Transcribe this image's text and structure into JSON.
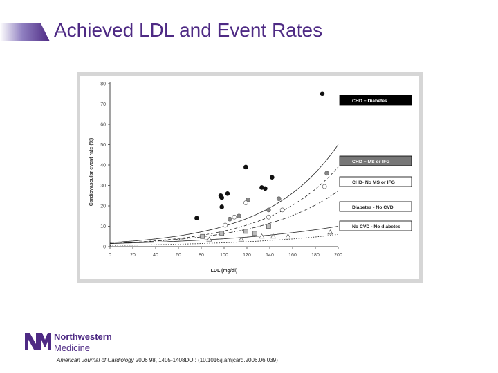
{
  "slide": {
    "title": "Achieved LDL and Event Rates",
    "accent_color": "#4e2a84",
    "citation_journal": "American Journal of Cardiology",
    "citation_rest": " 2006 98, 1405-1408DOI: (10.1016/j.amjcard.2006.06.039)",
    "logo": {
      "line1": "Northwestern",
      "line2": "Medicine",
      "mark": "NM"
    }
  },
  "chart_data": {
    "type": "scatter",
    "xlabel": "LDL (mg/dl)",
    "ylabel": "Cardiovascular event rate (%)",
    "xlim": [
      0,
      200
    ],
    "ylim": [
      0,
      80
    ],
    "xticks": [
      0,
      20,
      40,
      60,
      80,
      100,
      120,
      140,
      160,
      180,
      200
    ],
    "yticks": [
      0,
      10,
      20,
      30,
      40,
      50,
      60,
      70,
      80
    ],
    "grid": false,
    "series": [
      {
        "name": "CHD + Diabetes",
        "marker": "filled-circle",
        "color": "#111111",
        "line_style": "solid",
        "curve": {
          "a": 2.0,
          "b": 0.0161
        },
        "points": [
          [
            76,
            14
          ],
          [
            97,
            25
          ],
          [
            98,
            24
          ],
          [
            98,
            19.5
          ],
          [
            103,
            26
          ],
          [
            119,
            39
          ],
          [
            133,
            29
          ],
          [
            136,
            28.5
          ],
          [
            142,
            34
          ],
          [
            186,
            75
          ]
        ]
      },
      {
        "name": "CHD + MS or IFG",
        "marker": "grey-circle",
        "color": "#888888",
        "line_style": "dashed",
        "curve": {
          "a": 1.5,
          "b": 0.0163
        },
        "points": [
          [
            105,
            13.5
          ],
          [
            113,
            15
          ],
          [
            121,
            23
          ],
          [
            139,
            18
          ],
          [
            148,
            23.5
          ],
          [
            190,
            36
          ]
        ]
      },
      {
        "name": "CHD- No MS or IFG",
        "marker": "open-circle",
        "color": "#ffffff",
        "line_style": "dashdot",
        "curve": {
          "a": 1.5,
          "b": 0.0145
        },
        "points": [
          [
            101,
            10.5
          ],
          [
            109,
            14.5
          ],
          [
            119,
            21.5
          ],
          [
            139,
            14.5
          ],
          [
            151,
            18
          ],
          [
            188,
            29.5
          ]
        ]
      },
      {
        "name": "Diabetes - No CVD",
        "marker": "open-square",
        "color": "#aaaaaa",
        "line_style": "solid",
        "curve": {
          "a": 1.5,
          "b": 0.0095
        },
        "points": [
          [
            81,
            5
          ],
          [
            98,
            6.5
          ],
          [
            119,
            7.5
          ],
          [
            127,
            6.5
          ],
          [
            139,
            10
          ]
        ]
      },
      {
        "name": "No CVD - No diabetes",
        "marker": "open-triangle",
        "color": "#ffffff",
        "line_style": "dotted",
        "curve": {
          "a": 0.6,
          "b": 0.0115
        },
        "points": [
          [
            87,
            3.5
          ],
          [
            115,
            3.5
          ],
          [
            133,
            5
          ],
          [
            143,
            5
          ],
          [
            156,
            5
          ],
          [
            193,
            7
          ]
        ]
      }
    ]
  }
}
